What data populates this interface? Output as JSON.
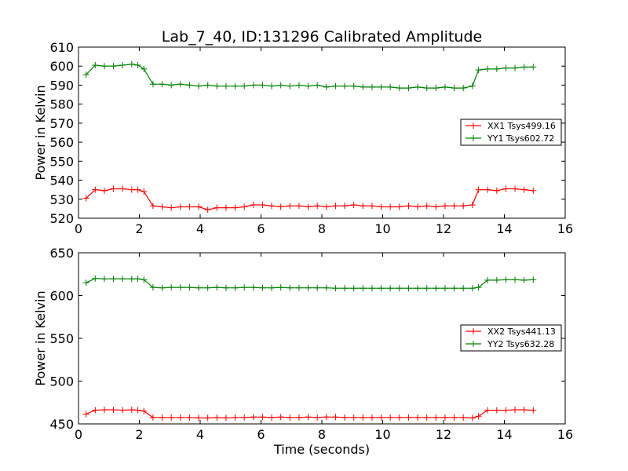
{
  "figure_title": "Lab_7_40, ID:131296 Calibrated Amplitude",
  "colors": {
    "xx": "#ff0000",
    "yy": "#008000"
  },
  "chart_data": [
    {
      "type": "line",
      "title": "Lab_7_40, ID:131296 Calibrated Amplitude",
      "xlabel": "",
      "ylabel": "Power in Kelvin",
      "xlim": [
        0,
        16
      ],
      "ylim": [
        520,
        610
      ],
      "xticks": [
        0,
        2,
        4,
        6,
        8,
        10,
        12,
        14,
        16
      ],
      "yticks": [
        520,
        530,
        540,
        550,
        560,
        570,
        580,
        590,
        600,
        610
      ],
      "grid": false,
      "legend_position": "center-right",
      "marker": "+",
      "x": [
        0.25,
        0.55,
        0.85,
        1.15,
        1.45,
        1.75,
        1.95,
        2.15,
        2.45,
        2.75,
        3.05,
        3.35,
        3.65,
        3.95,
        4.25,
        4.55,
        4.85,
        5.15,
        5.45,
        5.75,
        6.05,
        6.35,
        6.65,
        6.95,
        7.25,
        7.55,
        7.85,
        8.15,
        8.45,
        8.75,
        9.05,
        9.35,
        9.65,
        9.95,
        10.25,
        10.55,
        10.85,
        11.15,
        11.45,
        11.75,
        12.05,
        12.35,
        12.65,
        12.95,
        13.15,
        13.45,
        13.75,
        14.05,
        14.35,
        14.65,
        14.95
      ],
      "series": [
        {
          "name": "XX1 Tsys499.16",
          "color": "#ff0000",
          "values": [
            530.5,
            535,
            534.5,
            535.5,
            535.5,
            535,
            535,
            534,
            526.5,
            526,
            525.5,
            526,
            526,
            526,
            524.5,
            525.5,
            525.5,
            525.5,
            526,
            527,
            527,
            526.5,
            526,
            526.5,
            526.5,
            526,
            526.5,
            526,
            526.5,
            526.5,
            527,
            526.5,
            526.5,
            526,
            526,
            526,
            526.5,
            526,
            526.5,
            526,
            526.5,
            526.5,
            526.5,
            527,
            535,
            535,
            534.5,
            535.5,
            535.5,
            535,
            534.5
          ]
        },
        {
          "name": "YY1 Tsys602.72",
          "color": "#008000",
          "values": [
            595.5,
            600.5,
            600,
            600,
            600.5,
            601,
            600.5,
            598.5,
            590.5,
            590.5,
            590,
            590.5,
            590,
            589.5,
            590,
            589.5,
            589.5,
            589.5,
            589.5,
            590,
            590,
            589.5,
            590,
            589.5,
            590,
            589.5,
            590,
            589,
            589.5,
            589.5,
            589.5,
            589,
            589,
            589,
            589,
            588.5,
            588.5,
            589,
            588.5,
            588.5,
            589,
            588.5,
            588.5,
            589.5,
            598,
            598.5,
            598.5,
            599,
            599,
            599.5,
            599.5
          ]
        }
      ]
    },
    {
      "type": "line",
      "title": "",
      "xlabel": "Time (seconds)",
      "ylabel": "Power in Kelvin",
      "xlim": [
        0,
        16
      ],
      "ylim": [
        450,
        650
      ],
      "xticks": [
        0,
        2,
        4,
        6,
        8,
        10,
        12,
        14,
        16
      ],
      "yticks": [
        450,
        500,
        550,
        600,
        650
      ],
      "grid": false,
      "legend_position": "center-right",
      "marker": "+",
      "x": [
        0.25,
        0.55,
        0.85,
        1.15,
        1.45,
        1.75,
        1.95,
        2.15,
        2.45,
        2.75,
        3.05,
        3.35,
        3.65,
        3.95,
        4.25,
        4.55,
        4.85,
        5.15,
        5.45,
        5.75,
        6.05,
        6.35,
        6.65,
        6.95,
        7.25,
        7.55,
        7.85,
        8.15,
        8.45,
        8.75,
        9.05,
        9.35,
        9.65,
        9.95,
        10.25,
        10.55,
        10.85,
        11.15,
        11.45,
        11.75,
        12.05,
        12.35,
        12.65,
        12.95,
        13.15,
        13.45,
        13.75,
        14.05,
        14.35,
        14.65,
        14.95
      ],
      "series": [
        {
          "name": "XX2 Tsys441.13",
          "color": "#ff0000",
          "values": [
            461.5,
            466,
            466.5,
            466.5,
            466,
            466.5,
            466,
            465,
            457.5,
            457.5,
            457.5,
            457.5,
            457.5,
            457,
            457,
            457.5,
            457,
            457.5,
            457.5,
            458,
            458,
            457.5,
            458,
            457.5,
            457.5,
            458,
            457.5,
            458,
            458,
            457.5,
            457.5,
            457.5,
            457.5,
            457.5,
            457.5,
            457.5,
            457.5,
            457.5,
            457.5,
            457.5,
            457.5,
            457.5,
            457.5,
            457,
            459,
            466,
            466,
            466,
            466.5,
            466.5,
            466
          ]
        },
        {
          "name": "YY2 Tsys632.28",
          "color": "#008000",
          "values": [
            615,
            620,
            619.5,
            619.5,
            619.5,
            619.5,
            619.5,
            618.5,
            609.5,
            609,
            609.5,
            609.5,
            609.5,
            609,
            609,
            609.5,
            609,
            609,
            609.5,
            609.5,
            609,
            609,
            609.5,
            609,
            609,
            609,
            609,
            609,
            608.5,
            608.5,
            608.5,
            608.5,
            608.5,
            608.5,
            608.5,
            608.5,
            608.5,
            608.5,
            608.5,
            608.5,
            608.5,
            608.5,
            608.5,
            608.5,
            609.5,
            618,
            618,
            618.5,
            618.5,
            618,
            618.5
          ]
        }
      ]
    }
  ]
}
